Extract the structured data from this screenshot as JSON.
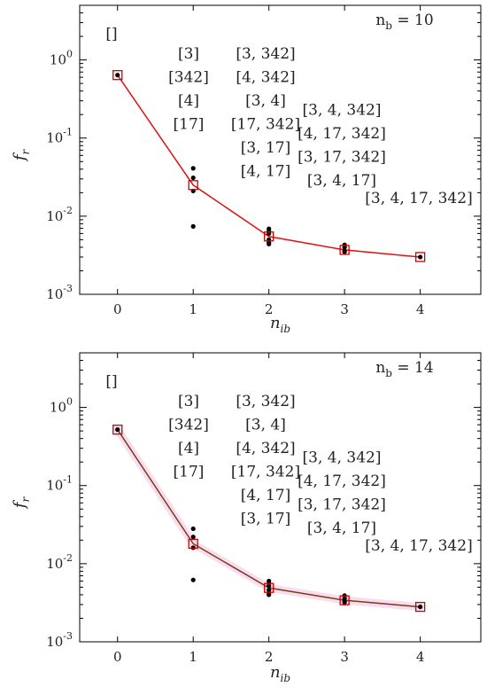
{
  "chart_data": [
    {
      "type": "scatter",
      "title": "",
      "xlabel": "n_ib",
      "ylabel": "f_r",
      "yscale": "log",
      "xlim": [
        -0.5,
        4.8
      ],
      "ylim": [
        0.001,
        5
      ],
      "x_ticks": [
        0,
        1,
        2,
        3,
        4
      ],
      "x_tick_labels": [
        "0",
        "1",
        "2",
        "3",
        "4"
      ],
      "y_ticks": [
        0.001,
        0.01,
        0.1,
        1
      ],
      "y_tick_labels": [
        "10^-3",
        "10^-2",
        "10^-1",
        "10^0"
      ],
      "annotation_nb": "n_b = 10",
      "accent_color": "#e01010",
      "marker_color": "#cc0000",
      "series": [
        {
          "style": "line-square",
          "x": [
            0,
            1,
            2,
            3,
            4
          ],
          "y": [
            0.64,
            0.025,
            0.0055,
            0.0037,
            0.003
          ]
        },
        {
          "style": "dots",
          "x": [
            0,
            1,
            1,
            1,
            1,
            2,
            2,
            2,
            2,
            2,
            2,
            3,
            3,
            3,
            3,
            4
          ],
          "y": [
            0.64,
            0.041,
            0.031,
            0.021,
            0.0074,
            0.0069,
            0.0064,
            0.006,
            0.005,
            0.0046,
            0.0044,
            0.0043,
            0.004,
            0.0036,
            0.0035,
            0.003
          ]
        }
      ],
      "subset_labels": [
        {
          "x": 0,
          "rows": [
            "[]"
          ]
        },
        {
          "x": 1,
          "rows": [
            "[3]",
            "[342]",
            "[4]",
            "[17]"
          ]
        },
        {
          "x": 2,
          "rows": [
            "[3, 342]",
            "[4, 342]",
            "[3, 4]",
            "[17, 342]",
            "[3, 17]",
            "[4, 17]"
          ]
        },
        {
          "x": 3,
          "rows": [
            "[3, 4, 342]",
            "[4, 17, 342]",
            "[3, 17, 342]",
            "[3, 4, 17]"
          ]
        },
        {
          "x": 4,
          "rows": [
            "[3, 4, 17, 342]"
          ]
        }
      ]
    },
    {
      "type": "scatter",
      "title": "",
      "xlabel": "n_ib",
      "ylabel": "f_r",
      "yscale": "log",
      "xlim": [
        -0.5,
        4.8
      ],
      "ylim": [
        0.001,
        5
      ],
      "x_ticks": [
        0,
        1,
        2,
        3,
        4
      ],
      "x_tick_labels": [
        "0",
        "1",
        "2",
        "3",
        "4"
      ],
      "y_ticks": [
        0.001,
        0.01,
        0.1,
        1
      ],
      "y_tick_labels": [
        "10^-3",
        "10^-2",
        "10^-1",
        "10^0"
      ],
      "annotation_nb": "n_b = 14",
      "accent_color": "#7a3b12",
      "marker_color": "#cc0000",
      "band_color": "#f3c6e8",
      "series": [
        {
          "style": "line-square",
          "x": [
            0,
            1,
            2,
            3,
            4
          ],
          "y": [
            0.52,
            0.018,
            0.0049,
            0.0034,
            0.0028
          ]
        },
        {
          "style": "dots",
          "x": [
            0,
            1,
            1,
            1,
            1,
            2,
            2,
            2,
            2,
            2,
            2,
            3,
            3,
            3,
            3,
            4
          ],
          "y": [
            0.52,
            0.028,
            0.022,
            0.016,
            0.0062,
            0.006,
            0.0056,
            0.0052,
            0.0046,
            0.0042,
            0.004,
            0.0039,
            0.0036,
            0.0033,
            0.0032,
            0.0028
          ]
        }
      ],
      "subset_labels": [
        {
          "x": 0,
          "rows": [
            "[]"
          ]
        },
        {
          "x": 1,
          "rows": [
            "[3]",
            "[342]",
            "[4]",
            "[17]"
          ]
        },
        {
          "x": 2,
          "rows": [
            "[3, 342]",
            "[3, 4]",
            "[4, 342]",
            "[17, 342]",
            "[4, 17]",
            "[3, 17]"
          ]
        },
        {
          "x": 3,
          "rows": [
            "[3, 4, 342]",
            "[4, 17, 342]",
            "[3, 17, 342]",
            "[3, 4, 17]"
          ]
        },
        {
          "x": 4,
          "rows": [
            "[3, 4, 17, 342]"
          ]
        }
      ]
    }
  ]
}
